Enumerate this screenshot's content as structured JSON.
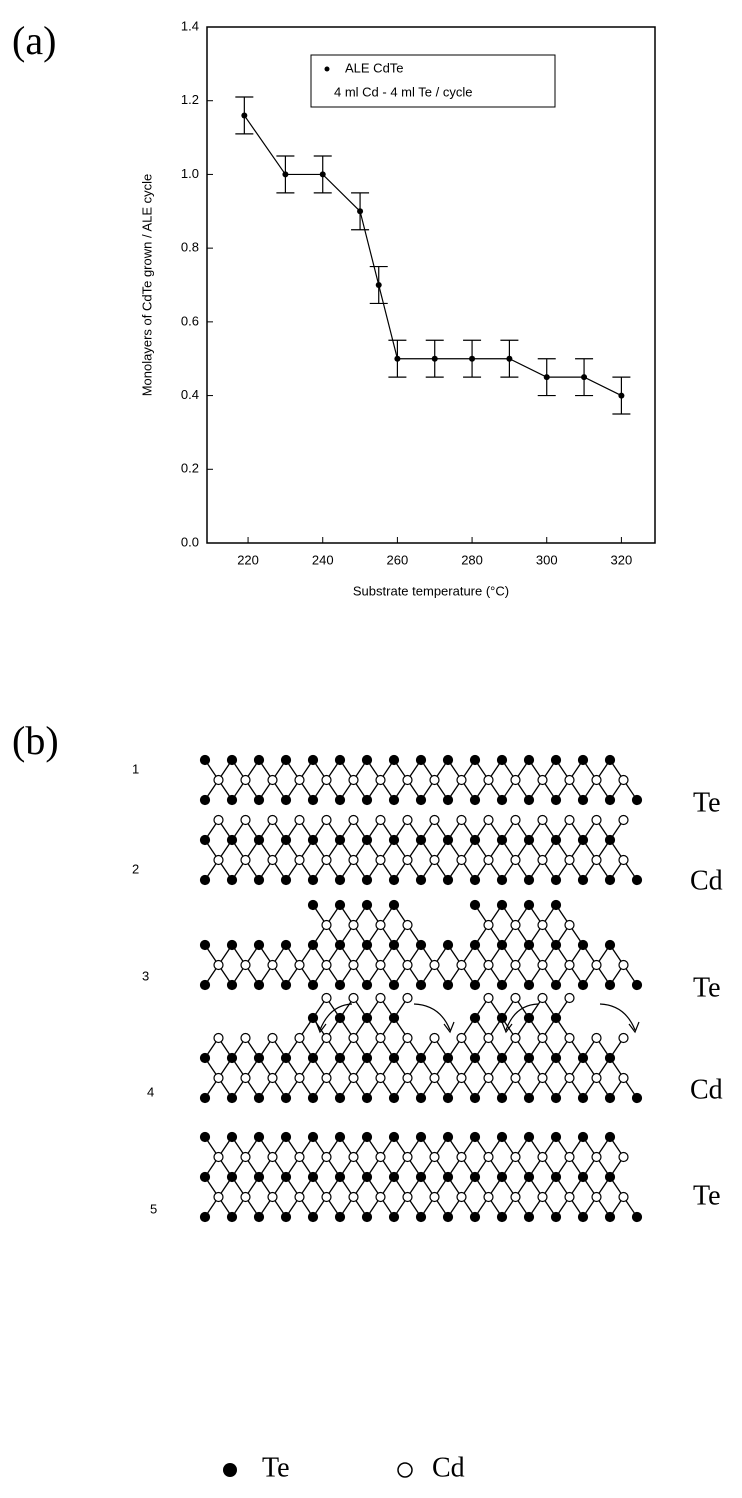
{
  "panel_a_label": "(a)",
  "chart_data": {
    "type": "scatter",
    "x_label": "Substrate temperature (°C)",
    "y_label": "Monolayers of CdTe grown / ALE cycle",
    "annotation": "4 ml Cd - 4 ml Te / cycle",
    "x": [
      219,
      230,
      240,
      250,
      255,
      260,
      270,
      280,
      290,
      300,
      310,
      320
    ],
    "series": [
      {
        "name": "ALE CdTe",
        "color": "#000000",
        "values": [
          1.16,
          1.0,
          1.0,
          0.9,
          0.7,
          0.5,
          0.5,
          0.5,
          0.5,
          0.45,
          0.45,
          0.4
        ],
        "errors": [
          0.05,
          0.05,
          0.05,
          0.05,
          0.05,
          0.05,
          0.05,
          0.05,
          0.05,
          0.05,
          0.05,
          0.05
        ]
      }
    ],
    "xlim": [
      209,
      329
    ],
    "xticks": [
      220,
      240,
      260,
      280,
      300,
      320
    ],
    "ylim": [
      0,
      1.4
    ],
    "yticks": [
      {
        "value": 0,
        "label": "0.0"
      },
      0.2,
      0.4,
      0.6,
      0.8,
      {
        "value": 1,
        "label": "1.0"
      },
      1.2,
      1.4
    ],
    "legend": "top-center"
  },
  "panel_b": {
    "label": "(b)",
    "rows": [
      {
        "number": "1",
        "layer": "Te"
      },
      {
        "number": "2",
        "layer": "Cd"
      },
      {
        "number": "3",
        "layer": "Te"
      },
      {
        "number": "4",
        "layer": "Cd"
      },
      {
        "number": "5",
        "layer": "Te"
      }
    ],
    "legend": [
      "Te",
      "Cd"
    ]
  }
}
